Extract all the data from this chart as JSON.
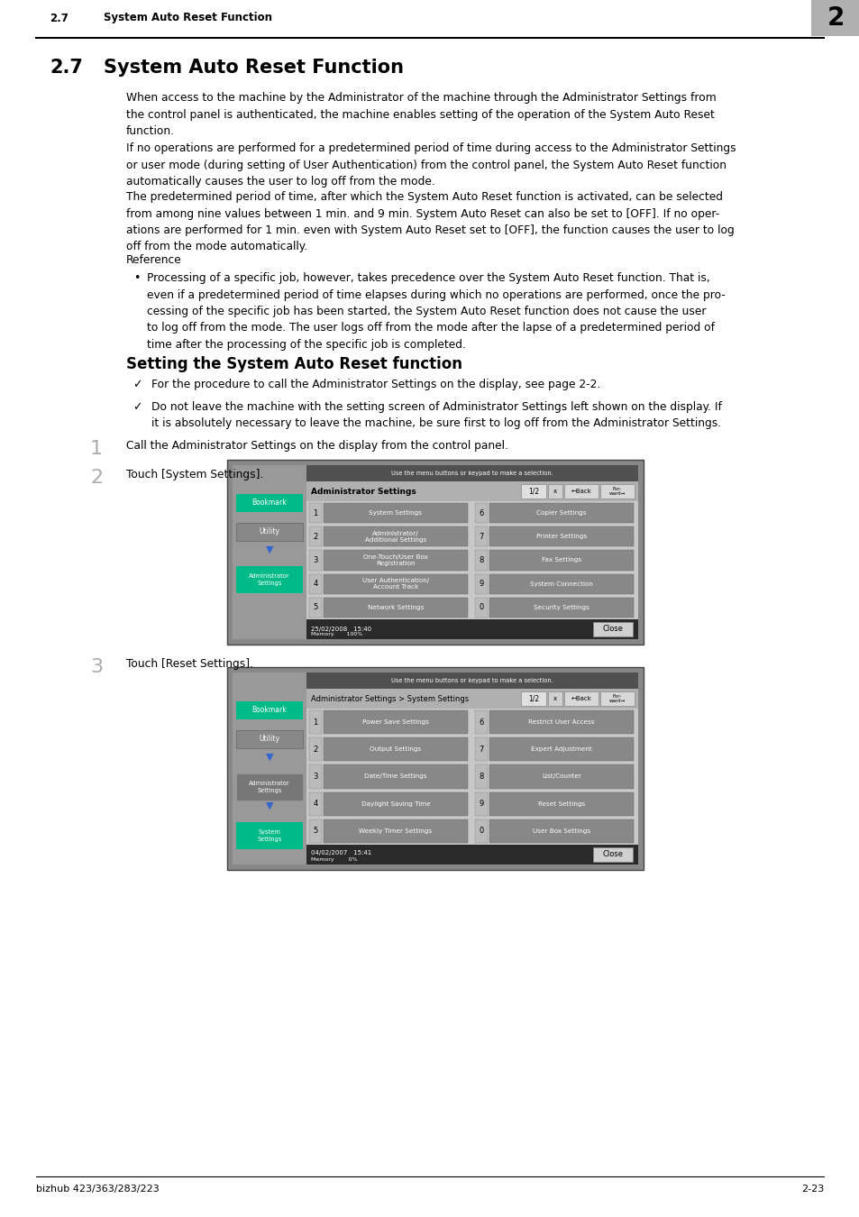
{
  "header_number": "2",
  "header_number_bg": "#b0b0b0",
  "header_label": "2.7",
  "header_title": "System Auto Reset Function",
  "title_num": "2.7",
  "title_text": "System Auto Reset Function",
  "para1": "When access to the machine by the Administrator of the machine through the Administrator Settings from\nthe control panel is authenticated, the machine enables setting of the operation of the System Auto Reset\nfunction.",
  "para2": "If no operations are performed for a predetermined period of time during access to the Administrator Settings\nor user mode (during setting of User Authentication) from the control panel, the System Auto Reset function\nautomatically causes the user to log off from the mode.",
  "para3": "The predetermined period of time, after which the System Auto Reset function is activated, can be selected\nfrom among nine values between 1 min. and 9 min. System Auto Reset can also be set to [OFF]. If no oper-\nations are performed for 1 min. even with System Auto Reset set to [OFF], the function causes the user to log\noff from the mode automatically.",
  "ref_label": "Reference",
  "bullet1": "Processing of a specific job, however, takes precedence over the System Auto Reset function. That is,\neven if a predetermined period of time elapses during which no operations are performed, once the pro-\ncessing of the specific job has been started, the System Auto Reset function does not cause the user\nto log off from the mode. The user logs off from the mode after the lapse of a predetermined period of\ntime after the processing of the specific job is completed.",
  "subtitle": "Setting the System Auto Reset function",
  "check1": "For the procedure to call the Administrator Settings on the display, see page 2-2.",
  "check2": "Do not leave the machine with the setting screen of Administrator Settings left shown on the display. If\nit is absolutely necessary to leave the machine, be sure first to log off from the Administrator Settings.",
  "step1_num": "1",
  "step1_text": "Call the Administrator Settings on the display from the control panel.",
  "step2_num": "2",
  "step2_text": "Touch [System Settings].",
  "step3_num": "3",
  "step3_text": "Touch [Reset Settings].",
  "screen1_toptext": "Use the menu buttons or keypad to make a selection.",
  "screen1_title": "Administrator Settings",
  "screen1_page": "1/2",
  "screen1_date": "25/02/2008   15:40",
  "screen1_mem": "Memory       100%",
  "screen1_left1": [
    "1",
    "System Settings",
    "6",
    "Copier Settings"
  ],
  "screen1_left2": [
    "2",
    "Administrator/\nAdditional Settings",
    "7",
    "Printer Settings"
  ],
  "screen1_left3": [
    "3",
    "One-Touch/User Box\nRegistration",
    "8",
    "Fax Settings"
  ],
  "screen1_left4": [
    "4",
    "User Authentication/\nAccount Track",
    "9",
    "System Connection"
  ],
  "screen1_left5": [
    "5",
    "Network Settings",
    "0",
    "Security Settings"
  ],
  "screen2_toptext": "Use the menu buttons or keypad to make a selection.",
  "screen2_title": "Administrator Settings > System Settings",
  "screen2_page": "1/2",
  "screen2_date": "04/02/2007   15:41",
  "screen2_mem": "Memory        0%",
  "screen2_rows": [
    [
      "1",
      "Power Save Settings",
      "6",
      "Restrict User Access"
    ],
    [
      "2",
      "Output Settings",
      "7",
      "Expert Adjustment"
    ],
    [
      "3",
      "Date/Time Settings",
      "8",
      "List/Counter"
    ],
    [
      "4",
      "Daylight Saving Time",
      "9",
      "Reset Settings"
    ],
    [
      "5",
      "Weekly Timer Settings",
      "0",
      "User Box Settings"
    ]
  ],
  "footer_left": "bizhub 423/363/283/223",
  "footer_right": "2-23",
  "bg_color": "#ffffff"
}
